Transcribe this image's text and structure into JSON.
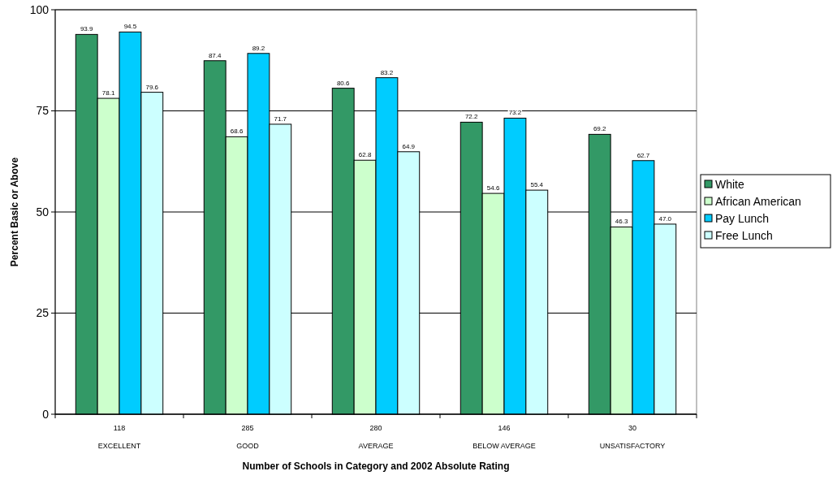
{
  "chart_data": {
    "type": "bar",
    "xlabel": "Number of Schools in Category and 2002 Absolute Rating",
    "ylabel": "Percent Basic or Above",
    "categories": [
      "118\nEXCELLENT",
      "285\nGOOD",
      "280\nAVERAGE",
      "146\nBELOW AVERAGE",
      "30\nUNSATISFACTORY"
    ],
    "series": [
      {
        "name": "White",
        "color": "#339966",
        "values": [
          93.9,
          87.4,
          80.6,
          72.2,
          69.2
        ],
        "value_labels": [
          "93.9",
          "87.4",
          "80.6",
          "72.2",
          "69.2"
        ]
      },
      {
        "name": "African American",
        "color": "#ccffcc",
        "values": [
          78.1,
          68.6,
          62.8,
          54.6,
          46.3
        ],
        "value_labels": [
          "78.1",
          "68.6",
          "62.8",
          "54.6",
          "46.3"
        ]
      },
      {
        "name": "Pay Lunch",
        "color": "#00ccff",
        "values": [
          94.5,
          89.2,
          83.2,
          73.2,
          62.7
        ],
        "value_labels": [
          "94.5",
          "89.2",
          "83.2",
          "73.2",
          "62.7"
        ]
      },
      {
        "name": "Free Lunch",
        "color": "#ccffff",
        "values": [
          79.6,
          71.7,
          64.9,
          55.4,
          47.0
        ],
        "value_labels": [
          "79.6",
          "71.7",
          "64.9",
          "55.4",
          "47.0"
        ]
      }
    ],
    "ylim": [
      0,
      100
    ],
    "yticks": [
      0,
      25,
      50,
      75,
      100
    ],
    "grid": "y",
    "legend": "right"
  }
}
